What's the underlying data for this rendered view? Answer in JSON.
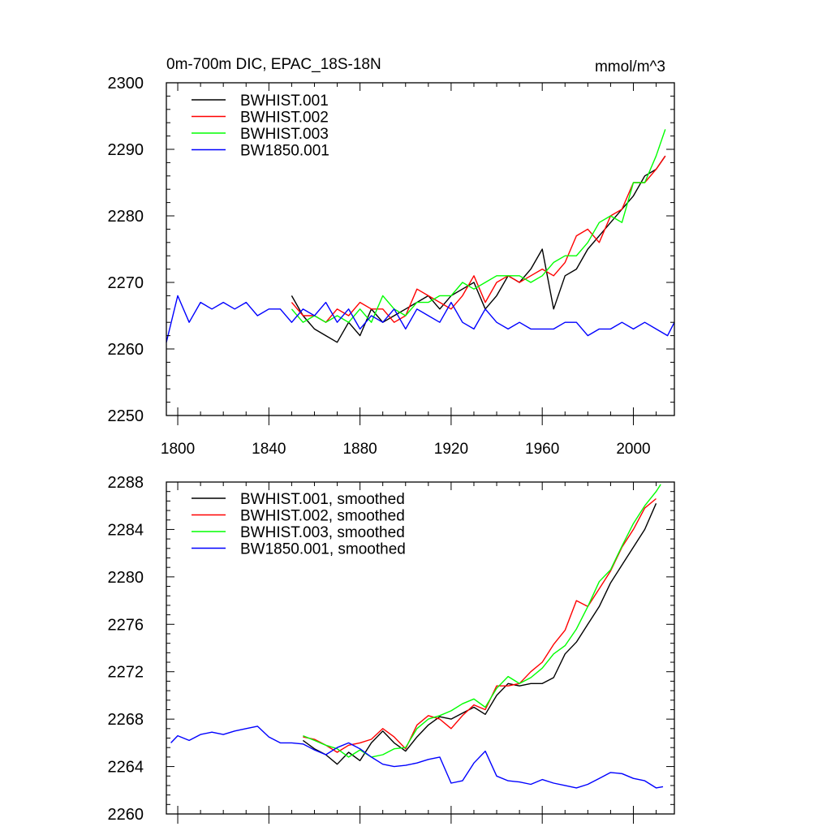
{
  "chart_data": [
    {
      "type": "line",
      "title": "0m-700m DIC, EPAC_18S-18N",
      "units": "mmol/m^3",
      "xlabel": "",
      "ylabel": "",
      "xlim": [
        1795,
        2018
      ],
      "ylim": [
        2250,
        2300
      ],
      "xticks": [
        1800,
        1840,
        1880,
        1920,
        1960,
        2000
      ],
      "xtick_labels": [
        "1800",
        "1840",
        "1880",
        "1920",
        "1960",
        "2000"
      ],
      "yticks": [
        2250,
        2260,
        2270,
        2280,
        2290,
        2300
      ],
      "ytick_labels": [
        "2250",
        "2260",
        "2270",
        "2280",
        "2290",
        "2300"
      ],
      "legend_position": "top-left",
      "series": [
        {
          "name": "BWHIST.001",
          "color": "#000000",
          "x": [
            1850,
            1855,
            1860,
            1865,
            1870,
            1875,
            1880,
            1885,
            1890,
            1895,
            1900,
            1905,
            1910,
            1915,
            1920,
            1925,
            1930,
            1935,
            1940,
            1945,
            1950,
            1955,
            1960,
            1965,
            1970,
            1975,
            1980,
            1985,
            1990,
            1995,
            2000,
            2005,
            2010,
            2014
          ],
          "y": [
            2268,
            2265,
            2263,
            2262,
            2261,
            2264,
            2262,
            2266,
            2264,
            2265,
            2266,
            2267,
            2268,
            2266,
            2268,
            2269,
            2270,
            2266,
            2268,
            2271,
            2270,
            2272,
            2275,
            2266,
            2271,
            2272,
            2275,
            2277,
            2279,
            2281,
            2283,
            2286,
            2287,
            2289
          ]
        },
        {
          "name": "BWHIST.002",
          "color": "#ff0000",
          "x": [
            1850,
            1855,
            1860,
            1865,
            1870,
            1875,
            1880,
            1885,
            1890,
            1895,
            1900,
            1905,
            1910,
            1915,
            1920,
            1925,
            1930,
            1935,
            1940,
            1945,
            1950,
            1955,
            1960,
            1965,
            1970,
            1975,
            1980,
            1985,
            1990,
            1995,
            2000,
            2005,
            2010,
            2014
          ],
          "y": [
            2267,
            2265,
            2265,
            2264,
            2266,
            2265,
            2267,
            2266,
            2266,
            2264,
            2265,
            2269,
            2268,
            2267,
            2266,
            2268,
            2271,
            2267,
            2270,
            2271,
            2270,
            2271,
            2272,
            2271,
            2273,
            2277,
            2278,
            2276,
            2280,
            2281,
            2285,
            2285,
            2287,
            2289
          ]
        },
        {
          "name": "BWHIST.003",
          "color": "#00ff00",
          "x": [
            1850,
            1855,
            1860,
            1865,
            1870,
            1875,
            1880,
            1885,
            1890,
            1895,
            1900,
            1905,
            1910,
            1915,
            1920,
            1925,
            1930,
            1935,
            1940,
            1945,
            1950,
            1955,
            1960,
            1965,
            1970,
            1975,
            1980,
            1985,
            1990,
            1995,
            2000,
            2005,
            2010,
            2014
          ],
          "y": [
            2266,
            2264,
            2265,
            2264,
            2265,
            2264,
            2266,
            2264,
            2268,
            2266,
            2265,
            2267,
            2267,
            2268,
            2268,
            2270,
            2269,
            2270,
            2271,
            2271,
            2271,
            2270,
            2271,
            2273,
            2274,
            2274,
            2276,
            2279,
            2280,
            2279,
            2285,
            2285,
            2289,
            2293
          ]
        },
        {
          "name": "BW1850.001",
          "color": "#0000ff",
          "x": [
            1795,
            1800,
            1805,
            1810,
            1815,
            1820,
            1825,
            1830,
            1835,
            1840,
            1845,
            1850,
            1855,
            1860,
            1865,
            1870,
            1875,
            1880,
            1885,
            1890,
            1895,
            1900,
            1905,
            1910,
            1915,
            1920,
            1925,
            1930,
            1935,
            1940,
            1945,
            1950,
            1955,
            1960,
            1965,
            1970,
            1975,
            1980,
            1985,
            1990,
            1995,
            2000,
            2005,
            2010,
            2015,
            2018
          ],
          "y": [
            2261,
            2268,
            2264,
            2267,
            2266,
            2267,
            2266,
            2267,
            2265,
            2266,
            2266,
            2264,
            2266,
            2265,
            2267,
            2264,
            2266,
            2263,
            2265,
            2264,
            2266,
            2263,
            2266,
            2265,
            2264,
            2267,
            2264,
            2263,
            2266,
            2264,
            2263,
            2264,
            2263,
            2263,
            2263,
            2264,
            2264,
            2262,
            2263,
            2263,
            2264,
            2263,
            2264,
            2263,
            2262,
            2264
          ]
        }
      ]
    },
    {
      "type": "line",
      "title": "",
      "xlabel": "",
      "ylabel": "",
      "xlim": [
        1795,
        2018
      ],
      "ylim": [
        2260,
        2288
      ],
      "xticks": [
        1800,
        1840,
        1880,
        1920,
        1960,
        2000
      ],
      "yticks": [
        2260,
        2264,
        2268,
        2272,
        2276,
        2280,
        2284,
        2288
      ],
      "ytick_labels": [
        "2260",
        "2264",
        "2268",
        "2272",
        "2276",
        "2280",
        "2284",
        "2288"
      ],
      "legend_position": "top-left",
      "series": [
        {
          "name": "BWHIST.001, smoothed",
          "color": "#000000",
          "x": [
            1855,
            1860,
            1865,
            1870,
            1875,
            1880,
            1885,
            1890,
            1895,
            1900,
            1905,
            1910,
            1915,
            1920,
            1925,
            1930,
            1935,
            1940,
            1945,
            1950,
            1955,
            1960,
            1965,
            1970,
            1975,
            1980,
            1985,
            1990,
            1995,
            2000,
            2005,
            2010
          ],
          "y": [
            2266.2,
            2265.5,
            2265.0,
            2264.2,
            2265.2,
            2264.5,
            2266.0,
            2267.0,
            2266.0,
            2265.3,
            2266.5,
            2267.5,
            2268.2,
            2268.0,
            2268.5,
            2269.0,
            2268.4,
            2270.0,
            2271.0,
            2270.8,
            2271.0,
            2271.0,
            2271.5,
            2273.5,
            2274.5,
            2276.0,
            2277.5,
            2279.5,
            2281.0,
            2282.5,
            2284.0,
            2286.2
          ]
        },
        {
          "name": "BWHIST.002, smoothed",
          "color": "#ff0000",
          "x": [
            1855,
            1860,
            1865,
            1870,
            1875,
            1880,
            1885,
            1890,
            1895,
            1900,
            1905,
            1910,
            1915,
            1920,
            1925,
            1930,
            1935,
            1940,
            1945,
            1950,
            1955,
            1960,
            1965,
            1970,
            1975,
            1980,
            1985,
            1990,
            1995,
            2000,
            2005,
            2010
          ],
          "y": [
            2266.5,
            2266.3,
            2265.8,
            2265.2,
            2265.8,
            2266.0,
            2266.3,
            2267.2,
            2266.5,
            2265.5,
            2267.5,
            2268.3,
            2268.0,
            2267.2,
            2268.3,
            2269.2,
            2268.8,
            2270.8,
            2270.8,
            2271.0,
            2272.0,
            2272.8,
            2274.3,
            2275.5,
            2278.0,
            2277.5,
            2279.0,
            2280.5,
            2282.5,
            2284.0,
            2285.8,
            2286.6
          ]
        },
        {
          "name": "BWHIST.003, smoothed",
          "color": "#00ff00",
          "x": [
            1855,
            1860,
            1865,
            1870,
            1875,
            1880,
            1885,
            1890,
            1895,
            1900,
            1905,
            1910,
            1915,
            1920,
            1925,
            1930,
            1935,
            1940,
            1945,
            1950,
            1955,
            1960,
            1965,
            1970,
            1975,
            1980,
            1985,
            1990,
            1995,
            2000,
            2005,
            2010,
            2012
          ],
          "y": [
            2266.6,
            2266.2,
            2265.8,
            2265.5,
            2264.8,
            2265.4,
            2264.8,
            2265.0,
            2265.5,
            2265.6,
            2267.2,
            2268.0,
            2268.3,
            2268.7,
            2269.3,
            2269.7,
            2269.0,
            2270.6,
            2271.6,
            2271.0,
            2271.5,
            2272.3,
            2273.5,
            2274.2,
            2275.6,
            2277.5,
            2279.6,
            2280.6,
            2282.6,
            2284.5,
            2286.0,
            2287.2,
            2287.8
          ]
        },
        {
          "name": "BW1850.001, smoothed",
          "color": "#0000ff",
          "x": [
            1797,
            1800,
            1805,
            1810,
            1815,
            1820,
            1825,
            1830,
            1835,
            1840,
            1845,
            1850,
            1855,
            1860,
            1865,
            1870,
            1875,
            1880,
            1885,
            1890,
            1895,
            1900,
            1905,
            1910,
            1915,
            1920,
            1925,
            1930,
            1935,
            1940,
            1945,
            1950,
            1955,
            1960,
            1965,
            1970,
            1975,
            1980,
            1985,
            1990,
            1995,
            2000,
            2005,
            2010,
            2013
          ],
          "y": [
            2266.0,
            2266.6,
            2266.2,
            2266.7,
            2266.9,
            2266.7,
            2267.0,
            2267.2,
            2267.4,
            2266.5,
            2266.0,
            2266.0,
            2265.9,
            2265.4,
            2265.0,
            2265.6,
            2266.0,
            2265.5,
            2264.8,
            2264.2,
            2264.0,
            2264.1,
            2264.3,
            2264.6,
            2264.8,
            2262.6,
            2262.8,
            2264.3,
            2265.3,
            2263.2,
            2262.8,
            2262.7,
            2262.5,
            2262.9,
            2262.6,
            2262.4,
            2262.2,
            2262.5,
            2263.0,
            2263.5,
            2263.4,
            2263.0,
            2262.8,
            2262.2,
            2262.3
          ]
        }
      ]
    }
  ]
}
